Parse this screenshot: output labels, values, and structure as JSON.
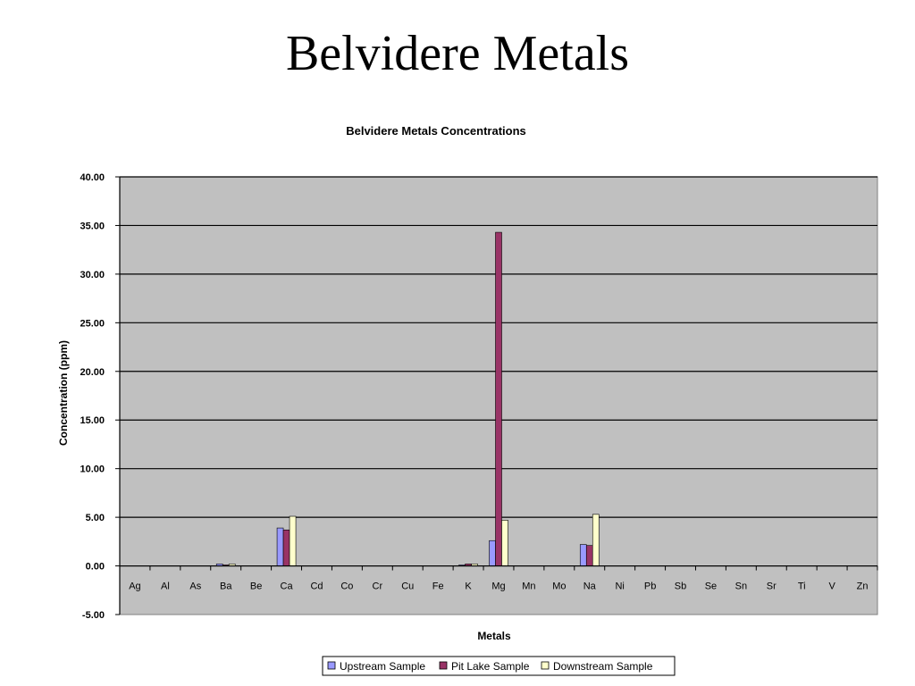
{
  "slide": {
    "title": "Belvidere Metals"
  },
  "chart_data": {
    "type": "bar",
    "title": "Belvidere Metals Concentrations",
    "xlabel": "Metals",
    "ylabel": "Concentration (ppm)",
    "ylim": [
      -5,
      40
    ],
    "yticks": [
      "40.00",
      "35.00",
      "30.00",
      "25.00",
      "20.00",
      "15.00",
      "10.00",
      "5.00",
      "0.00",
      "-5.00"
    ],
    "grid": true,
    "legend_position": "bottom",
    "categories": [
      "Ag",
      "Al",
      "As",
      "Ba",
      "Be",
      "Ca",
      "Cd",
      "Co",
      "Cr",
      "Cu",
      "Fe",
      "K",
      "Mg",
      "Mn",
      "Mo",
      "Na",
      "Ni",
      "Pb",
      "Sb",
      "Se",
      "Sn",
      "Sr",
      "Ti",
      "V",
      "Zn"
    ],
    "series": [
      {
        "name": "Upstream Sample",
        "color": "#9999FF",
        "values": [
          0,
          0,
          0,
          0.2,
          0,
          3.9,
          0,
          0,
          0,
          0,
          0,
          0.1,
          2.6,
          0,
          0,
          2.2,
          0,
          0,
          0,
          0,
          0,
          0,
          0,
          0,
          0
        ]
      },
      {
        "name": "Pit Lake Sample",
        "color": "#993366",
        "values": [
          0,
          0,
          0,
          0.1,
          0,
          3.7,
          0,
          0,
          0,
          0,
          0,
          0.2,
          34.3,
          0,
          0,
          2.1,
          0,
          0,
          0,
          0,
          0,
          0,
          0,
          0,
          0
        ]
      },
      {
        "name": "Downstream Sample",
        "color": "#FFFFCC",
        "values": [
          0,
          0,
          0,
          0.2,
          0,
          5.1,
          0,
          0,
          0,
          0,
          0,
          0.2,
          4.7,
          0,
          0,
          5.3,
          0,
          0,
          0,
          0,
          0,
          0,
          0,
          0,
          0
        ]
      }
    ],
    "plot_background": "#C0C0C0"
  }
}
